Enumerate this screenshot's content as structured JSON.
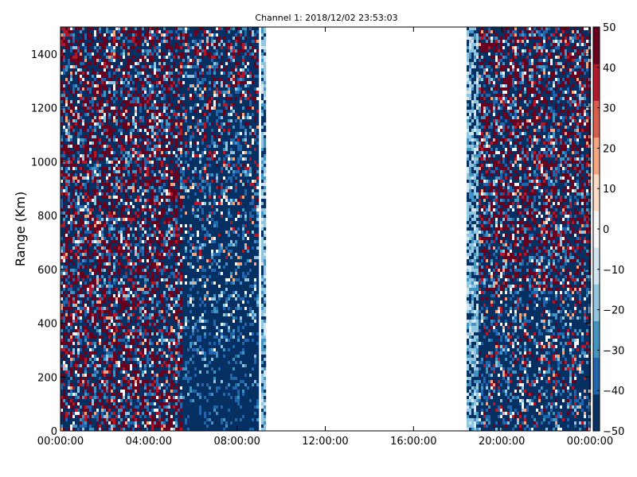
{
  "chart_data": {
    "type": "heatmap",
    "title": "Channel 1: 2018/12/02 23:53:03",
    "xlabel": "",
    "ylabel": "Range (Km)",
    "x_ticks": [
      "00:00:00",
      "04:00:00",
      "08:00:00",
      "12:00:00",
      "16:00:00",
      "20:00:00",
      "00:00:00"
    ],
    "x_range_hours": [
      0,
      24
    ],
    "y_ticks": [
      "0",
      "200",
      "400",
      "600",
      "800",
      "1000",
      "1200",
      "1400"
    ],
    "ylim": [
      0,
      1500
    ],
    "colorbar": {
      "ticks": [
        "50",
        "40",
        "30",
        "20",
        "10",
        "0",
        "−10",
        "−20",
        "−30",
        "−40",
        "−50"
      ],
      "range": [
        -50,
        50
      ],
      "colormap": "RdBu_r",
      "colors": [
        "#053061",
        "#2166ac",
        "#4393c3",
        "#92c5de",
        "#d1e5f0",
        "#f7f7f7",
        "#fddbc7",
        "#f4a582",
        "#d6604d",
        "#b2182b",
        "#67001f"
      ]
    },
    "data_coverage_hours": [
      [
        0,
        9.0
      ],
      [
        9.1,
        9.3
      ],
      [
        18.4,
        24
      ]
    ],
    "grid": false
  }
}
